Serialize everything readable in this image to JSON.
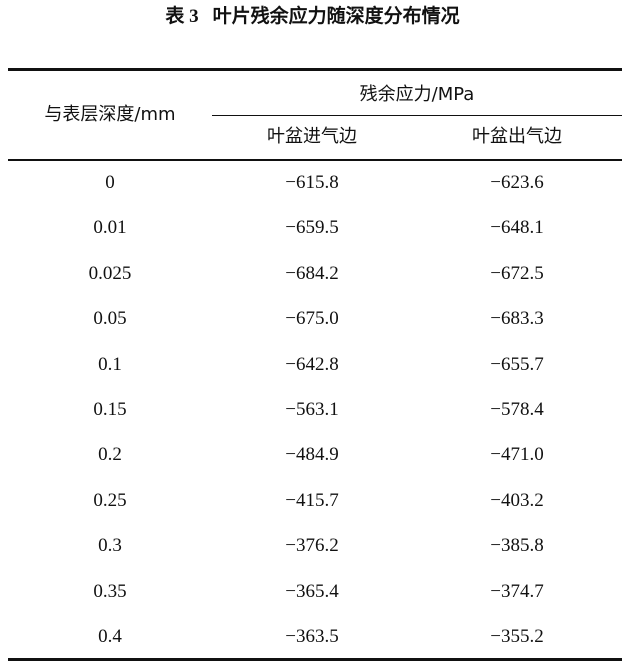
{
  "table": {
    "number": "表 3",
    "caption": "叶片残余应力随深度分布情况",
    "header": {
      "depth": "与表层深度/mm",
      "group": "残余应力/MPa",
      "columns": [
        "叶盆进气边",
        "叶盆出气边"
      ]
    },
    "rows": [
      [
        "0",
        "−615.8",
        "−623.6"
      ],
      [
        "0.01",
        "−659.5",
        "−648.1"
      ],
      [
        "0.025",
        "−684.2",
        "−672.5"
      ],
      [
        "0.05",
        "−675.0",
        "−683.3"
      ],
      [
        "0.1",
        "−642.8",
        "−655.7"
      ],
      [
        "0.15",
        "−563.1",
        "−578.4"
      ],
      [
        "0.2",
        "−484.9",
        "−471.0"
      ],
      [
        "0.25",
        "−415.7",
        "−403.2"
      ],
      [
        "0.3",
        "−376.2",
        "−385.8"
      ],
      [
        "0.35",
        "−365.4",
        "−374.7"
      ],
      [
        "0.4",
        "−363.5",
        "−355.2"
      ]
    ]
  }
}
